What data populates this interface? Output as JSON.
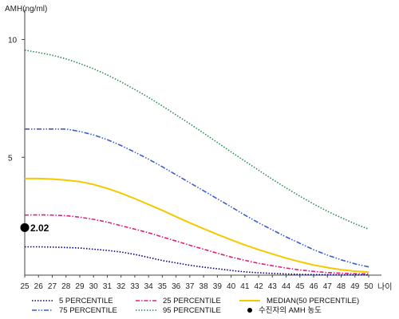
{
  "chart_data": {
    "type": "line",
    "ylabel": "AMH(ng/ml)",
    "xlabel": "나이",
    "xlim": [
      25,
      50
    ],
    "ylim": [
      0,
      11
    ],
    "x": [
      25,
      26,
      27,
      28,
      29,
      30,
      31,
      32,
      33,
      34,
      35,
      36,
      37,
      38,
      39,
      40,
      41,
      42,
      43,
      44,
      45,
      46,
      47,
      48,
      49,
      50
    ],
    "xticks": [
      25,
      26,
      27,
      28,
      29,
      30,
      31,
      32,
      33,
      34,
      35,
      36,
      37,
      38,
      39,
      40,
      41,
      42,
      43,
      44,
      45,
      46,
      47,
      48,
      49,
      50
    ],
    "yticks": [
      5,
      10
    ],
    "series": [
      {
        "name": "5 PERCENTILE",
        "color": "#000080",
        "dash": "dot",
        "values": [
          1.2,
          1.2,
          1.19,
          1.17,
          1.15,
          1.1,
          1.05,
          0.98,
          0.88,
          0.75,
          0.62,
          0.52,
          0.42,
          0.34,
          0.27,
          0.2,
          0.14,
          0.1,
          0.07,
          0.05,
          0.03,
          0.02,
          0.02,
          0.01,
          0.01,
          0.01
        ]
      },
      {
        "name": "25 PERCENTILE",
        "color": "#e0207a",
        "dash": "dashdot",
        "values": [
          2.55,
          2.56,
          2.55,
          2.52,
          2.46,
          2.37,
          2.25,
          2.1,
          1.95,
          1.8,
          1.62,
          1.45,
          1.27,
          1.1,
          0.93,
          0.77,
          0.63,
          0.5,
          0.4,
          0.3,
          0.22,
          0.16,
          0.11,
          0.08,
          0.06,
          0.05
        ]
      },
      {
        "name": "MEDIAN(50 PERCENTILE)",
        "color": "#f5c800",
        "dash": "solid",
        "values": [
          4.1,
          4.1,
          4.08,
          4.03,
          3.97,
          3.85,
          3.68,
          3.48,
          3.25,
          3.0,
          2.75,
          2.48,
          2.22,
          1.97,
          1.73,
          1.5,
          1.28,
          1.08,
          0.9,
          0.72,
          0.57,
          0.43,
          0.32,
          0.23,
          0.17,
          0.13
        ]
      },
      {
        "name": "75 PERCENTILE",
        "color": "#3a5fcd",
        "dash": "dashdotdot",
        "values": [
          6.2,
          6.2,
          6.2,
          6.2,
          6.1,
          5.95,
          5.75,
          5.5,
          5.22,
          4.92,
          4.6,
          4.26,
          3.92,
          3.58,
          3.24,
          2.9,
          2.55,
          2.22,
          1.92,
          1.62,
          1.35,
          1.08,
          0.85,
          0.65,
          0.48,
          0.35
        ]
      },
      {
        "name": "95 PERCENTILE",
        "color": "#2e8b57",
        "dash": "dot",
        "values": [
          9.55,
          9.45,
          9.33,
          9.18,
          8.98,
          8.76,
          8.5,
          8.2,
          7.88,
          7.54,
          7.18,
          6.8,
          6.42,
          6.03,
          5.63,
          5.23,
          4.84,
          4.45,
          4.07,
          3.7,
          3.35,
          3.02,
          2.71,
          2.44,
          2.18,
          1.95
        ]
      }
    ],
    "points": [
      {
        "name": "수진자의 AMH 농도",
        "x": 25,
        "y": 2.02,
        "label": "2.02",
        "color": "#000000"
      }
    ],
    "legend_position": "bottom"
  }
}
